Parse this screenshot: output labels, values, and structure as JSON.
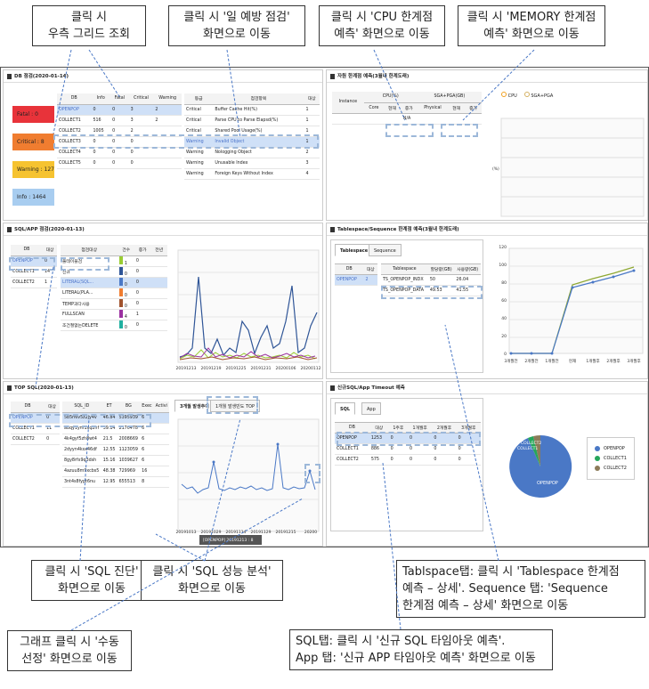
{
  "callouts": {
    "grid": "클릭 시\n우측 그리드 조회",
    "prevention": "클릭 시 '일 예방 점검'\n화면으로 이동",
    "cpu": "클릭 시 'CPU 한계점\n예측' 화면으로 이동",
    "memory": "클릭 시 'MEMORY 한계점\n예측' 화면으로 이동",
    "sql_diag": "클릭 시 'SQL 진단'\n화면으로 이동",
    "sql_perf": "클릭 시 'SQL 성능 분석'\n화면으로 이동",
    "tablespace": "Tablspace탭: 클릭 시 'Tablespace 한계점\n예측 – 상세'. Sequence 탭: 'Sequence\n한계점 예측 – 상세' 화면으로 이동",
    "manual": "그래프 클릭 시 '수동\n선정' 화면으로 이동",
    "sql_tab": "SQL탭: 클릭 시 '신규 SQL 타임아웃 예측'.\nApp 탭: '신규 APP 타임아웃 예측' 화면으로 이동"
  },
  "db_check": {
    "title": "DB 점검(2020-01-14)",
    "badges": [
      "Fatal : 0",
      "Critical : 8",
      "Warning : 127",
      "Info : 1464"
    ],
    "badge_colors": [
      "#e8333a",
      "#f07d30",
      "#f6c330",
      "#a8cdf0"
    ],
    "left_headers": [
      "DB",
      "Info",
      "Fatal",
      "Critical",
      "Warning"
    ],
    "left_rows": [
      [
        "OPENPOP",
        "0",
        "0",
        "3",
        "2"
      ],
      [
        "COLLECT1",
        "516",
        "0",
        "3",
        "2"
      ],
      [
        "COLLECT2",
        "1005",
        "0",
        "2",
        ""
      ],
      [
        "COLLECT3",
        "0",
        "0",
        "0",
        ""
      ],
      [
        "COLLECT4",
        "0",
        "0",
        "0",
        ""
      ],
      [
        "COLLECT5",
        "0",
        "0",
        "0",
        ""
      ]
    ],
    "right_headers": [
      "등급",
      "점검항목",
      "대상"
    ],
    "right_rows": [
      [
        "Critical",
        "Buffer Cache Hit(%)",
        "1"
      ],
      [
        "Critical",
        "Parse CPU to Parse Elapsd(%)",
        "1"
      ],
      [
        "Critical",
        "Shared Pool Usage(%)",
        "1"
      ],
      [
        "Warning",
        "Invalid Object",
        "1"
      ],
      [
        "Warning",
        "Nologging Object",
        "2"
      ],
      [
        "Warning",
        "Unusable Index",
        "3"
      ],
      [
        "Warning",
        "Foreign Keys Without Index",
        "4"
      ]
    ]
  },
  "resource": {
    "title": "자원 한계점 예측(3월내 한계도래)",
    "headers": [
      "Instance",
      "CPU(%)",
      "SGA+PGA(GB)"
    ],
    "sub_headers": [
      "Core",
      "현재",
      "증가",
      "Physical",
      "현재",
      "증가"
    ],
    "value": "N/A",
    "legend": [
      "CPU",
      "SGA+PGA"
    ],
    "ylabel": "(%)"
  },
  "sql_app": {
    "title": "SQL/APP 점검(2020-01-13)",
    "left_headers": [
      "DB",
      "대상"
    ],
    "left_rows": [
      [
        "OPENPOP",
        "0"
      ],
      [
        "COLLECT1",
        "14"
      ],
      [
        "COLLECT2",
        "1"
      ]
    ],
    "mid_headers": [
      "점검대상",
      "건수",
      "증가",
      "전년"
    ],
    "mid_rows": [
      [
        "풀테이블검",
        "1",
        "0",
        ""
      ],
      [
        "신규",
        "0",
        "0",
        ""
      ],
      [
        "LITERAL(SQL...",
        "0",
        "0",
        ""
      ],
      [
        "LITERAL(PLA...",
        "0",
        "0",
        ""
      ],
      [
        "TEMP과다사용",
        "0",
        "0",
        ""
      ],
      [
        "FULLSCAN",
        "4",
        "1",
        ""
      ],
      [
        "조건절없는DELETE",
        "0",
        "0",
        ""
      ]
    ],
    "xticks": [
      "20191213",
      "20191219",
      "20191225",
      "20191231",
      "20200106",
      "20200112"
    ]
  },
  "tablespace": {
    "title": "Tablespace/Sequence 한계점 예측(3월내 한계도래)",
    "tabs": [
      "Tablespace",
      "Sequence"
    ],
    "left_headers": [
      "DB",
      "대상"
    ],
    "left_rows": [
      [
        "OPENPOP",
        "2"
      ]
    ],
    "right_headers": [
      "Tablespace",
      "할당량(GB)",
      "사용량(GB)"
    ],
    "right_rows": [
      [
        "TS_OPENPOP_INDX",
        "50",
        "26.04"
      ],
      [
        "TS_OPENPOP_DATA",
        "49.53",
        "41.55"
      ]
    ],
    "xticks": [
      "3개월전",
      "2개월전",
      "1개월전",
      "현재",
      "1개월후",
      "2개월후",
      "3개월후"
    ],
    "yticks": [
      "0",
      "20",
      "40",
      "60",
      "80",
      "100",
      "120"
    ]
  },
  "top_sql": {
    "title": "TOP SQL(2020-01-13)",
    "left_headers": [
      "DB",
      "대상"
    ],
    "left_rows": [
      [
        "OPENPOP",
        "0"
      ],
      [
        "COLLECT1",
        "11"
      ],
      [
        "COLLECT2",
        "0"
      ]
    ],
    "mid_headers": [
      "SQL_ID",
      "ET",
      "BG",
      "Exec",
      "Activi"
    ],
    "mid_rows": [
      [
        "5b5n6v5z2jy4v",
        "46.84",
        "5395939",
        "6"
      ],
      [
        "a8qy1ym1xq2nf",
        "39.14",
        "2170478",
        "6"
      ],
      [
        "4k4gyf5zh8wt4",
        "21.5",
        "2008669",
        "6"
      ],
      [
        "2dyyn4ksx46df",
        "12.55",
        "1123059",
        "6"
      ],
      [
        "8gy8rfx9q3dsh",
        "15.16",
        "1039627",
        "6"
      ],
      [
        "4azuu8m9xcbs5",
        "48.38",
        "729969",
        "16"
      ],
      [
        "3nt4s8fypt6nu",
        "12.95",
        "655513",
        "8"
      ]
    ],
    "tabs": [
      "3개월 발생추이",
      "1개월 발생빈도 TOP"
    ],
    "tooltip": "[OPENPOP] 20191213 : 8",
    "xticks": [
      "20191013",
      "20191029",
      "20191114",
      "20191129",
      "20191215",
      "20200"
    ]
  },
  "timeout": {
    "title": "신규SQL/App Timeout 예측",
    "tabs": [
      "SQL",
      "App"
    ],
    "headers": [
      "DB",
      "대상",
      "1주후",
      "1개월후",
      "2개월후",
      "3개월후"
    ],
    "rows": [
      [
        "OPENPOP",
        "1253",
        "0",
        "0",
        "0",
        "0"
      ],
      [
        "COLLECT1",
        "886",
        "0",
        "0",
        "0",
        "0"
      ],
      [
        "COLLECT2",
        "575",
        "0",
        "0",
        "0",
        "0"
      ]
    ],
    "pie_labels": [
      "COLLECT2",
      "COLLECT1",
      "OPENPOP"
    ],
    "legend": [
      "OPENPOP",
      "COLLECT1",
      "COLLECT2"
    ],
    "legend_colors": [
      "#4a78c6",
      "#26a65b",
      "#8c7b5a"
    ]
  }
}
